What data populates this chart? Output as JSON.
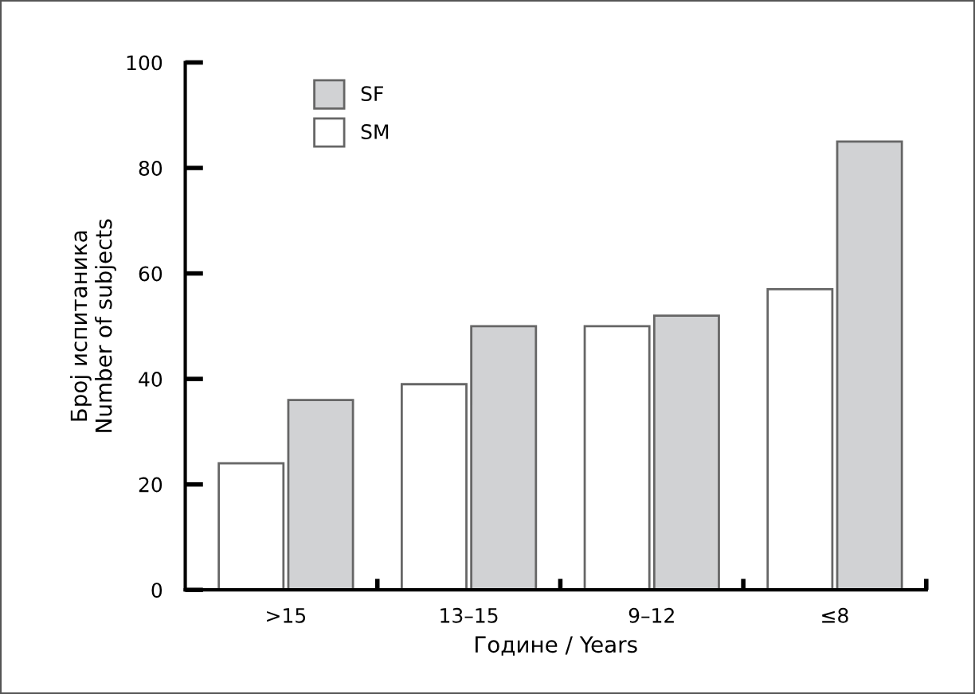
{
  "chart_data": {
    "type": "bar",
    "xlabel": "Године / Years",
    "ylabel": "Број испитаника\nNumber of subjects",
    "categories": [
      ">15",
      "13–15",
      "9–12",
      "≤8"
    ],
    "series": [
      {
        "name": "SM",
        "color": "#ffffff",
        "values": [
          24,
          39,
          50,
          57
        ]
      },
      {
        "name": "SF",
        "color": "#d1d2d4",
        "values": [
          36,
          50,
          52,
          85
        ]
      }
    ],
    "ylim": [
      0,
      100
    ],
    "yticks": [
      0,
      20,
      40,
      60,
      80,
      100
    ],
    "grid": false,
    "legend": "top left"
  }
}
